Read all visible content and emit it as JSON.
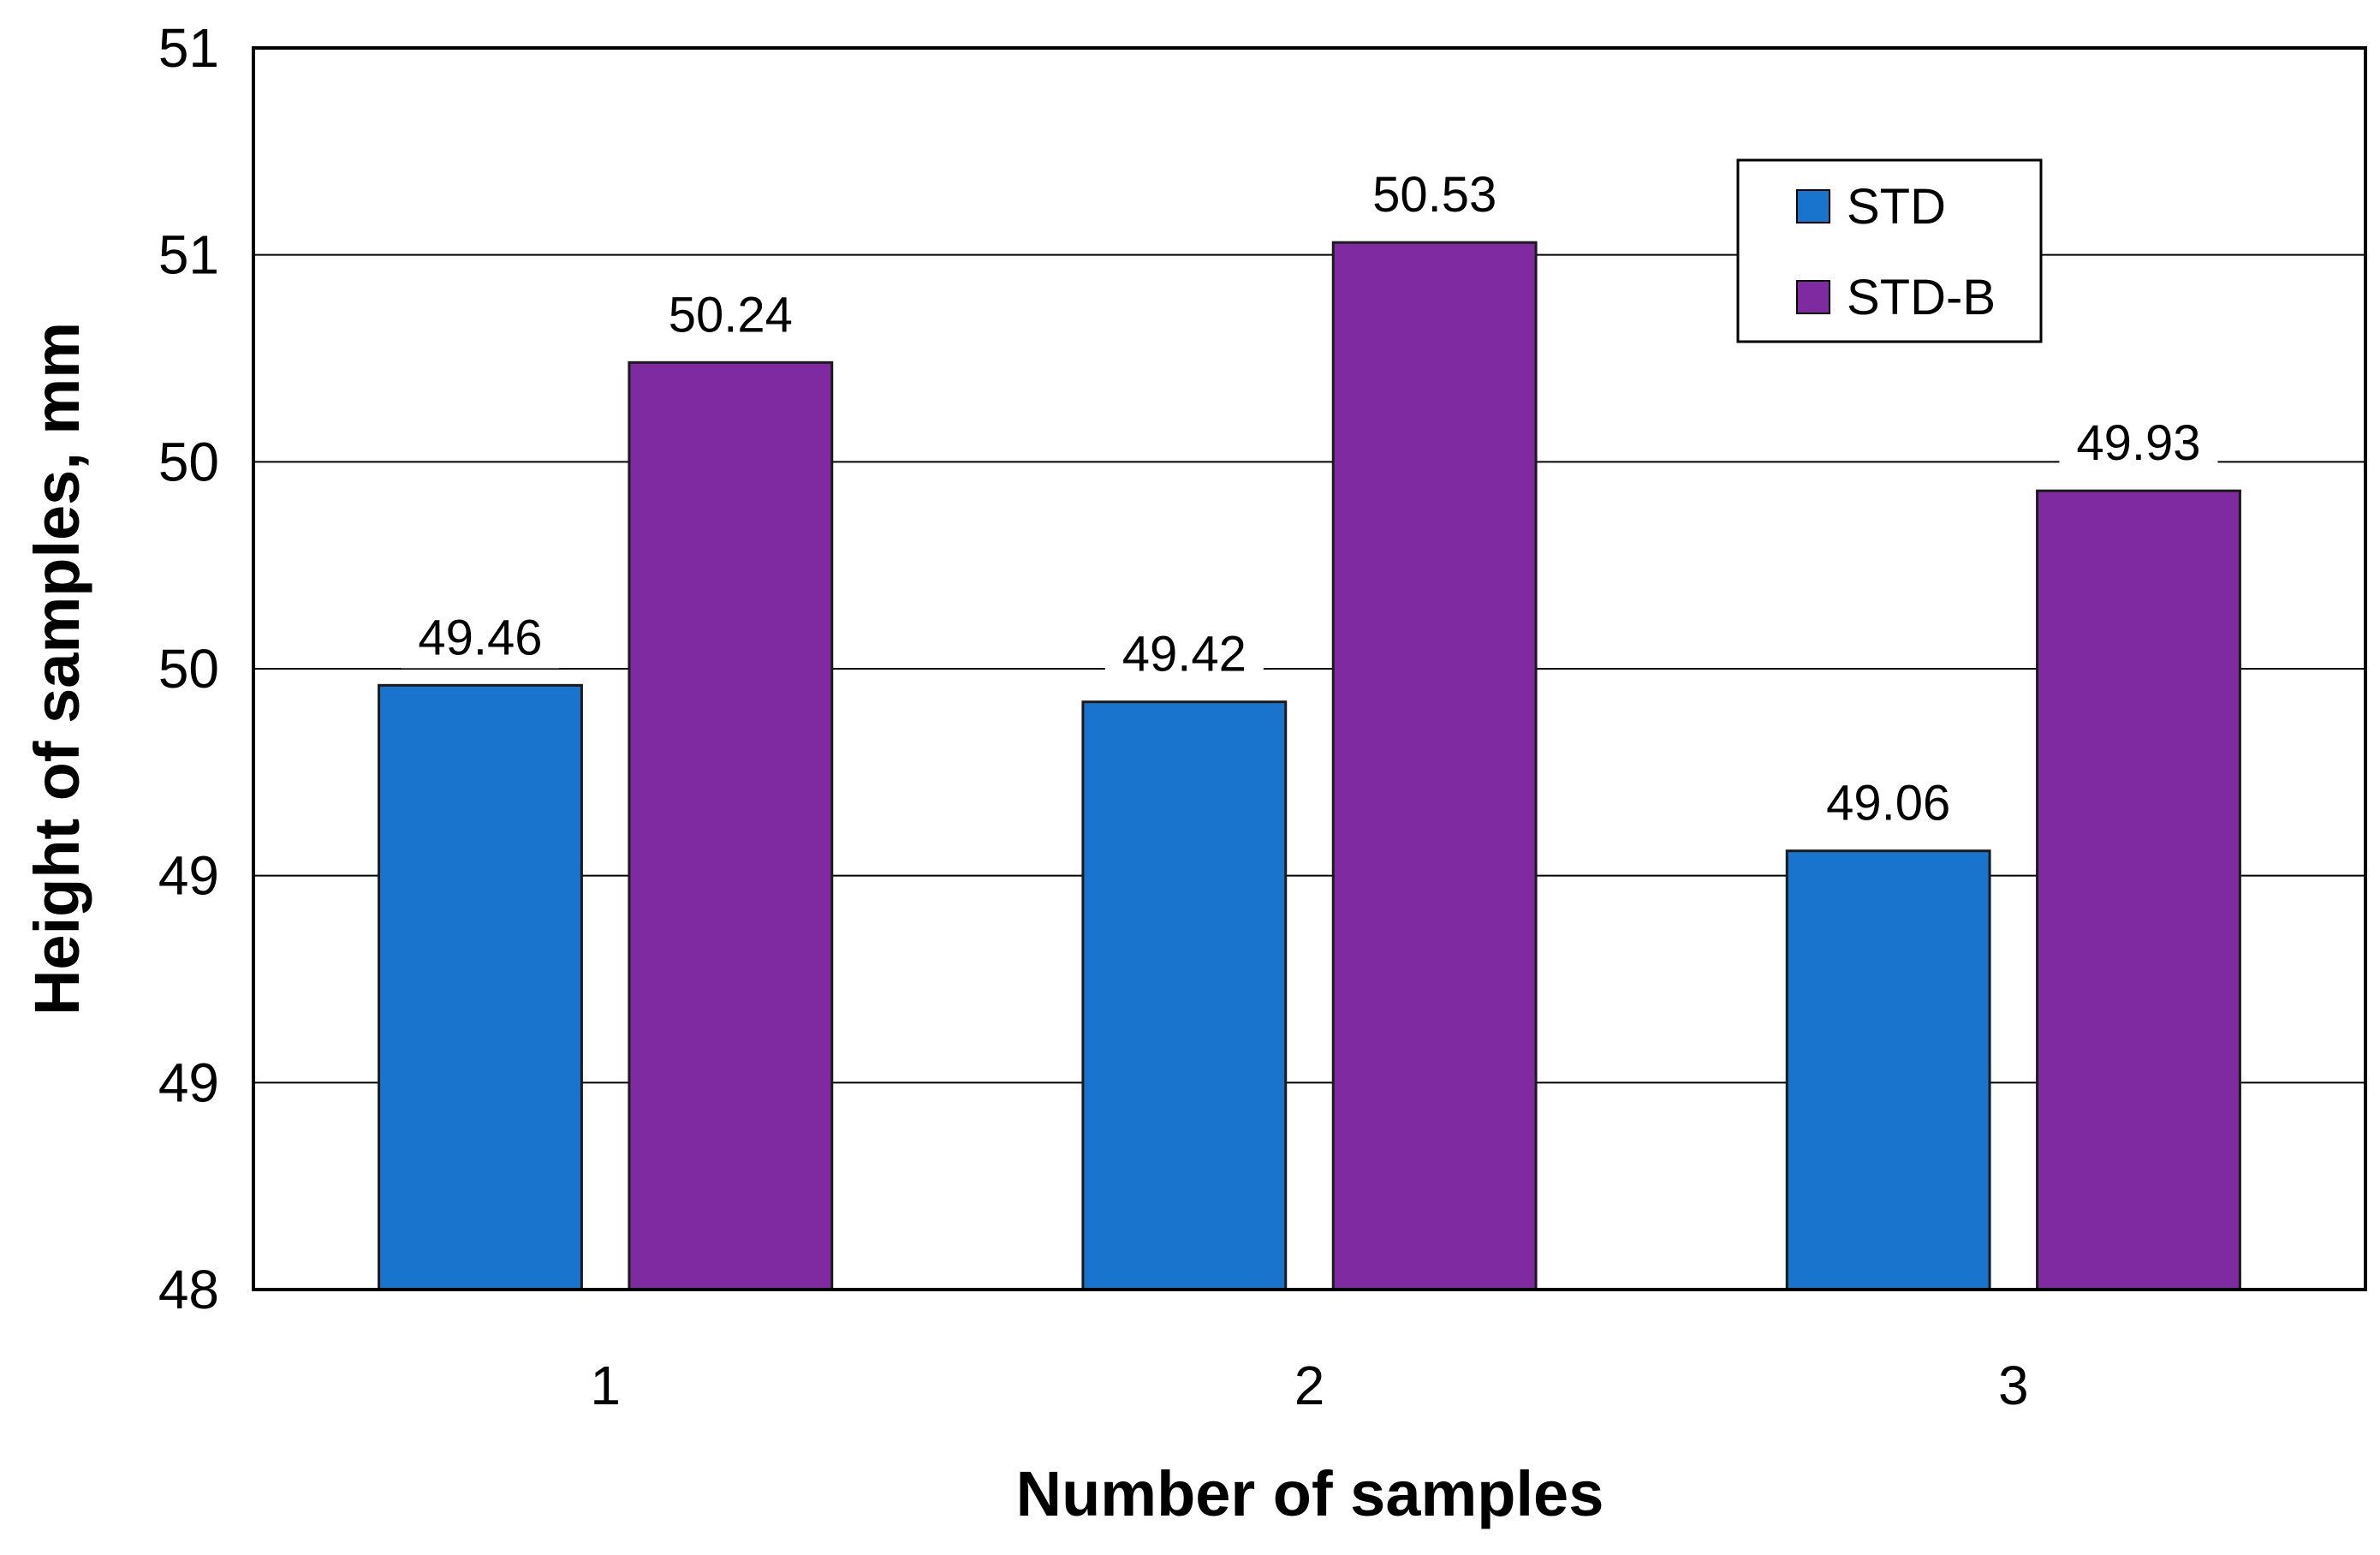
{
  "chart_data": {
    "type": "bar",
    "title": "",
    "xlabel": "Number of samples",
    "ylabel": "Height of samples, mm",
    "categories": [
      "1",
      "2",
      "3"
    ],
    "series": [
      {
        "name": "STD",
        "color": "#1874CD",
        "values": [
          49.46,
          49.42,
          49.06
        ],
        "labels": [
          "49.46",
          "49.42",
          "49.06"
        ]
      },
      {
        "name": "STD-B",
        "color": "#7F2AA1",
        "values": [
          50.24,
          50.53,
          49.93
        ],
        "labels": [
          "50.24",
          "50.53",
          "49.93"
        ]
      }
    ],
    "ylim": [
      48.0,
      51.0
    ],
    "yticks": [
      48.0,
      48.5,
      49.0,
      49.5,
      50.0,
      50.5,
      51.0
    ],
    "ytick_labels": [
      "48",
      "49",
      "49",
      "50",
      "50",
      "51",
      "51"
    ],
    "grid": true,
    "legend_position": "top-right"
  }
}
